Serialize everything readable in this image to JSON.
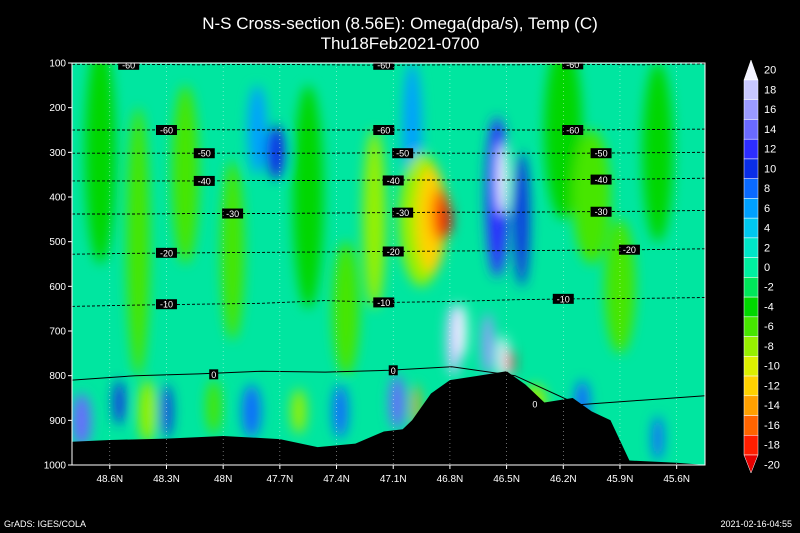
{
  "title": "N-S Cross-section (8.56E): Omega(dpa/s), Temp (C)",
  "subtitle": "Thu18Feb2021-0700",
  "footer_left": "GrADS: IGES/COLA",
  "footer_right": "2021-02-16-04:55",
  "chart_data": {
    "type": "heatmap",
    "title": "N-S Cross-section (8.56E): Omega(dpa/s), Temp (C)",
    "subtitle": "Thu18Feb2021-0700",
    "x_ticks": [
      "48.6N",
      "48.3N",
      "48N",
      "47.7N",
      "47.4N",
      "47.1N",
      "46.8N",
      "46.5N",
      "46.2N",
      "45.9N",
      "45.6N"
    ],
    "y_ticks": [
      100,
      200,
      300,
      400,
      500,
      600,
      700,
      800,
      900,
      1000
    ],
    "x_range_lat": [
      48.8,
      45.45
    ],
    "y_range_hpa": [
      100,
      1000
    ],
    "colorbar": {
      "levels": [
        20,
        18,
        16,
        14,
        12,
        10,
        8,
        6,
        4,
        2,
        0,
        -2,
        -4,
        -6,
        -8,
        -10,
        -12,
        -14,
        -16,
        -18,
        -20
      ],
      "colors": [
        "#f3f3ff",
        "#c8c8ff",
        "#9b9bff",
        "#6a6aff",
        "#2d2dff",
        "#0a2ee6",
        "#0a6aff",
        "#00a0ff",
        "#00c8f0",
        "#00e6c8",
        "#00f0a0",
        "#00e65a",
        "#00d700",
        "#46e600",
        "#96f000",
        "#dcf000",
        "#ffd200",
        "#ffa000",
        "#ff6400",
        "#ff1e00",
        "#e60000"
      ]
    },
    "isotherms": [
      {
        "label": "-60",
        "p": [
          103,
          103,
          104,
          103,
          104,
          105,
          104,
          104,
          103,
          104,
          102
        ],
        "label_at": [
          [
            48.5,
            104
          ],
          [
            47.15,
            104
          ],
          [
            46.15,
            103
          ]
        ]
      },
      {
        "label": "-60",
        "p": [
          250,
          250,
          249,
          250,
          250,
          250,
          249,
          250,
          250,
          249,
          248
        ],
        "label_at": [
          [
            48.3,
            250
          ],
          [
            47.15,
            250
          ],
          [
            46.15,
            250
          ]
        ]
      },
      {
        "label": "-50",
        "p": [
          302,
          302,
          302,
          302,
          302,
          301,
          302,
          302,
          302,
          301,
          300
        ],
        "label_at": [
          [
            48.1,
            302
          ],
          [
            47.05,
            302
          ],
          [
            46.0,
            302
          ]
        ]
      },
      {
        "label": "-40",
        "p": [
          364,
          364,
          364,
          363,
          363,
          362,
          362,
          362,
          361,
          360,
          358
        ],
        "label_at": [
          [
            48.1,
            364
          ],
          [
            47.1,
            363
          ],
          [
            46.0,
            361
          ]
        ]
      },
      {
        "label": "-30",
        "p": [
          438,
          438,
          437,
          437,
          436,
          435,
          434,
          434,
          433,
          432,
          430
        ],
        "label_at": [
          [
            47.95,
            437
          ],
          [
            47.05,
            435
          ],
          [
            46.0,
            433
          ]
        ]
      },
      {
        "label": "-20",
        "p": [
          528,
          526,
          525,
          524,
          523,
          522,
          521,
          520,
          519,
          518,
          516
        ],
        "label_at": [
          [
            48.3,
            525
          ],
          [
            47.1,
            522
          ],
          [
            45.85,
            518
          ]
        ]
      },
      {
        "label": "-10",
        "p": [
          645,
          642,
          640,
          638,
          632,
          636,
          634,
          630,
          628,
          627,
          625
        ],
        "label_at": [
          [
            48.3,
            640
          ],
          [
            47.15,
            636
          ],
          [
            46.2,
            628
          ]
        ]
      },
      {
        "label": "0",
        "p": [
          810,
          800,
          796,
          790,
          792,
          788,
          780,
          800,
          865,
          855,
          845
        ],
        "label_at": [
          [
            48.05,
            797
          ],
          [
            47.1,
            788
          ],
          [
            46.35,
            863
          ]
        ]
      }
    ],
    "terrain_p_by_lat": [
      [
        48.8,
        948
      ],
      [
        48.6,
        944
      ],
      [
        48.3,
        941
      ],
      [
        48.0,
        935
      ],
      [
        47.7,
        942
      ],
      [
        47.5,
        960
      ],
      [
        47.3,
        952
      ],
      [
        47.15,
        925
      ],
      [
        47.05,
        920
      ],
      [
        47.0,
        900
      ],
      [
        46.9,
        840
      ],
      [
        46.8,
        810
      ],
      [
        46.65,
        800
      ],
      [
        46.5,
        790
      ],
      [
        46.4,
        820
      ],
      [
        46.3,
        860
      ],
      [
        46.15,
        850
      ],
      [
        46.05,
        880
      ],
      [
        45.95,
        900
      ],
      [
        45.85,
        990
      ],
      [
        45.6,
        995
      ],
      [
        45.45,
        1000
      ]
    ]
  }
}
